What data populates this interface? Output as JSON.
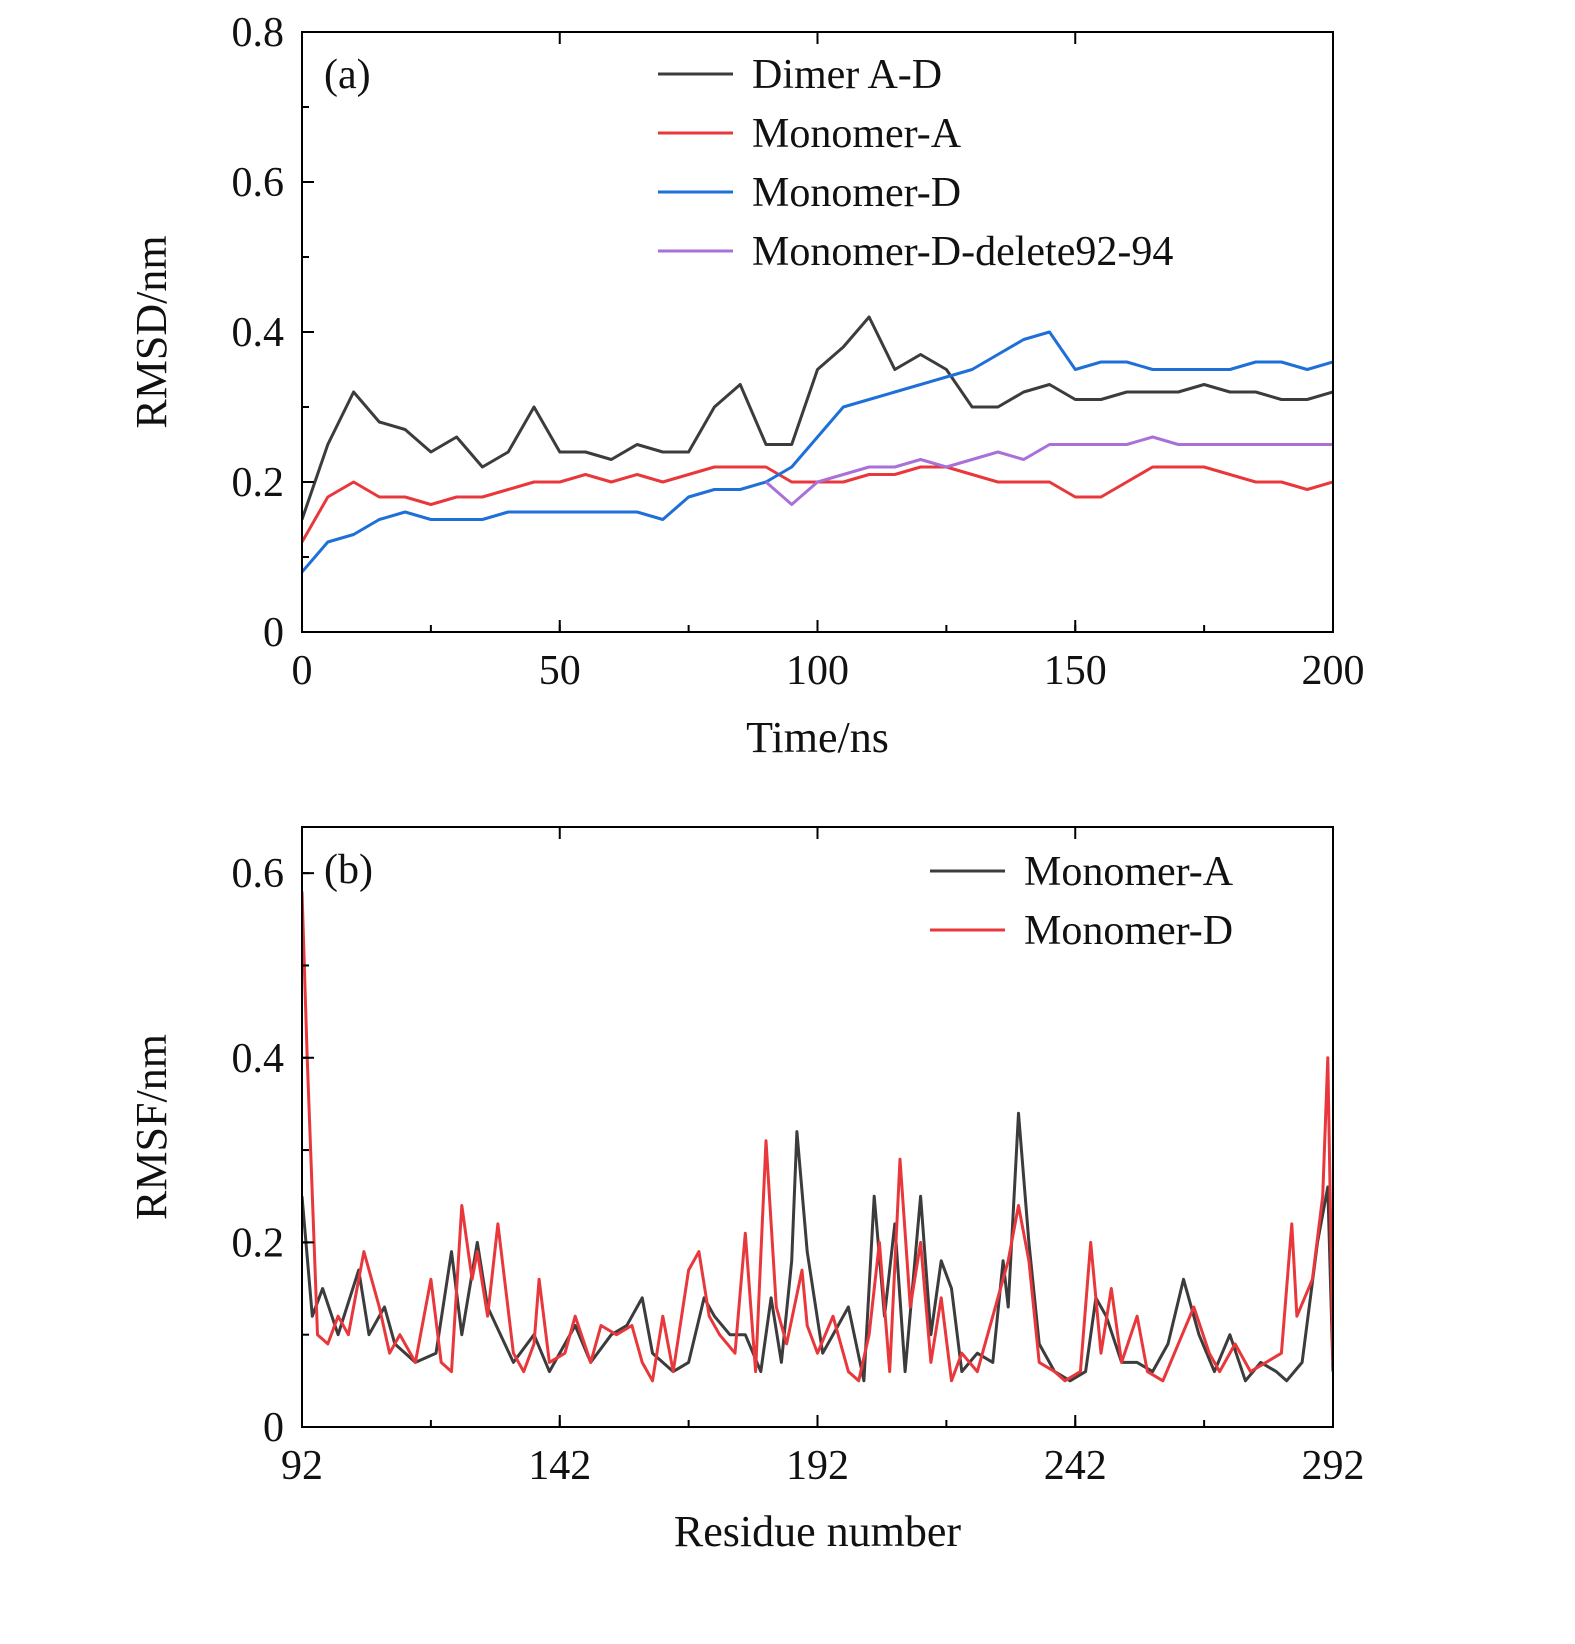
{
  "chart_data": [
    {
      "type": "line",
      "panel_label": "(a)",
      "xlabel": "Time/ns",
      "ylabel": "RMSD/nm",
      "xlim": [
        0,
        200
      ],
      "ylim": [
        0,
        0.8
      ],
      "xticks": [
        "0",
        "50",
        "100",
        "150",
        "200"
      ],
      "xtick_values": [
        0,
        50,
        100,
        150,
        200
      ],
      "xminor_step": 25,
      "yticks": [
        "0",
        "0.2",
        "0.4",
        "0.6",
        "0.8"
      ],
      "ytick_values": [
        0,
        0.2,
        0.4,
        0.6,
        0.8
      ],
      "yminor_step": 0.1,
      "legend_position": "top-right",
      "x": [
        0,
        5,
        10,
        15,
        20,
        25,
        30,
        35,
        40,
        45,
        50,
        55,
        60,
        65,
        70,
        75,
        80,
        85,
        90,
        95,
        100,
        105,
        110,
        115,
        120,
        125,
        130,
        135,
        140,
        145,
        150,
        155,
        160,
        165,
        170,
        175,
        180,
        185,
        190,
        195,
        200
      ],
      "series": [
        {
          "name": "Dimer A-D",
          "color": "#3c3c3c",
          "values": [
            0.15,
            0.25,
            0.32,
            0.28,
            0.27,
            0.24,
            0.26,
            0.22,
            0.24,
            0.3,
            0.24,
            0.24,
            0.23,
            0.25,
            0.24,
            0.24,
            0.3,
            0.33,
            0.25,
            0.25,
            0.35,
            0.38,
            0.42,
            0.35,
            0.37,
            0.35,
            0.3,
            0.3,
            0.32,
            0.33,
            0.31,
            0.31,
            0.32,
            0.32,
            0.32,
            0.33,
            0.32,
            0.32,
            0.31,
            0.31,
            0.32
          ]
        },
        {
          "name": "Monomer-A",
          "color": "#e8383b",
          "values": [
            0.12,
            0.18,
            0.2,
            0.18,
            0.18,
            0.17,
            0.18,
            0.18,
            0.19,
            0.2,
            0.2,
            0.21,
            0.2,
            0.21,
            0.2,
            0.21,
            0.22,
            0.22,
            0.22,
            0.2,
            0.2,
            0.2,
            0.21,
            0.21,
            0.22,
            0.22,
            0.21,
            0.2,
            0.2,
            0.2,
            0.18,
            0.18,
            0.2,
            0.22,
            0.22,
            0.22,
            0.21,
            0.2,
            0.2,
            0.19,
            0.2
          ]
        },
        {
          "name": "Monomer-D",
          "color": "#1f6fd8",
          "values": [
            0.08,
            0.12,
            0.13,
            0.15,
            0.16,
            0.15,
            0.15,
            0.15,
            0.16,
            0.16,
            0.16,
            0.16,
            0.16,
            0.16,
            0.15,
            0.18,
            0.19,
            0.19,
            0.2,
            0.22,
            0.26,
            0.3,
            0.31,
            0.32,
            0.33,
            0.34,
            0.35,
            0.37,
            0.39,
            0.4,
            0.35,
            0.36,
            0.36,
            0.35,
            0.35,
            0.35,
            0.35,
            0.36,
            0.36,
            0.35,
            0.36
          ]
        },
        {
          "name": "Monomer-D-delete92-94",
          "color": "#a970d8",
          "values": [
            null,
            null,
            null,
            null,
            null,
            null,
            null,
            null,
            null,
            null,
            null,
            null,
            null,
            null,
            null,
            null,
            null,
            null,
            0.2,
            0.17,
            0.2,
            0.21,
            0.22,
            0.22,
            0.23,
            0.22,
            0.23,
            0.24,
            0.23,
            0.25,
            0.25,
            0.25,
            0.25,
            0.26,
            0.25,
            0.25,
            0.25,
            0.25,
            0.25,
            0.25,
            0.25
          ]
        }
      ]
    },
    {
      "type": "line",
      "panel_label": "(b)",
      "xlabel": "Residue number",
      "ylabel": "RMSF/nm",
      "xlim": [
        92,
        292
      ],
      "ylim": [
        0,
        0.65
      ],
      "xticks": [
        "92",
        "142",
        "192",
        "242",
        "292"
      ],
      "xtick_values": [
        92,
        142,
        192,
        242,
        292
      ],
      "xminor_step": 25,
      "yticks": [
        "0",
        "0.2",
        "0.4",
        "0.6"
      ],
      "ytick_values": [
        0,
        0.2,
        0.4,
        0.6
      ],
      "yminor_step": 0.1,
      "legend_position": "top-right",
      "series": [
        {
          "name": "Monomer-A",
          "color": "#3c3c3c",
          "x": [
            92,
            94,
            96,
            99,
            103,
            105,
            108,
            110,
            114,
            118,
            121,
            123,
            126,
            128,
            133,
            137,
            140,
            145,
            148,
            152,
            155,
            158,
            160,
            164,
            167,
            170,
            172,
            175,
            178,
            181,
            183,
            185,
            187,
            188,
            190,
            193,
            195,
            198,
            201,
            203,
            205,
            207,
            209,
            212,
            214,
            216,
            218,
            220,
            223,
            226,
            228,
            229,
            231,
            233,
            235,
            238,
            241,
            244,
            246,
            248,
            251,
            254,
            257,
            260,
            263,
            266,
            269,
            272,
            275,
            278,
            281,
            283,
            286,
            289,
            291,
            292
          ],
          "values": [
            0.25,
            0.12,
            0.15,
            0.1,
            0.17,
            0.1,
            0.13,
            0.09,
            0.07,
            0.08,
            0.19,
            0.1,
            0.2,
            0.13,
            0.07,
            0.1,
            0.06,
            0.11,
            0.07,
            0.1,
            0.11,
            0.14,
            0.08,
            0.06,
            0.07,
            0.14,
            0.12,
            0.1,
            0.1,
            0.06,
            0.14,
            0.07,
            0.18,
            0.32,
            0.19,
            0.08,
            0.1,
            0.13,
            0.05,
            0.25,
            0.12,
            0.22,
            0.06,
            0.25,
            0.1,
            0.18,
            0.15,
            0.06,
            0.08,
            0.07,
            0.18,
            0.13,
            0.34,
            0.2,
            0.09,
            0.06,
            0.05,
            0.06,
            0.14,
            0.12,
            0.07,
            0.07,
            0.06,
            0.09,
            0.16,
            0.1,
            0.06,
            0.1,
            0.05,
            0.07,
            0.06,
            0.05,
            0.07,
            0.2,
            0.26,
            0.06
          ]
        },
        {
          "name": "Monomer-D",
          "color": "#e8383b",
          "x": [
            92,
            93,
            95,
            97,
            99,
            101,
            104,
            107,
            109,
            111,
            114,
            117,
            119,
            121,
            123,
            125,
            126,
            128,
            130,
            133,
            135,
            137,
            138,
            140,
            143,
            145,
            148,
            150,
            153,
            156,
            158,
            160,
            162,
            164,
            167,
            169,
            171,
            173,
            176,
            178,
            180,
            182,
            184,
            186,
            189,
            190,
            192,
            195,
            198,
            200,
            202,
            204,
            206,
            208,
            210,
            212,
            214,
            216,
            218,
            220,
            223,
            226,
            229,
            231,
            233,
            235,
            238,
            240,
            243,
            245,
            247,
            249,
            251,
            254,
            256,
            259,
            262,
            265,
            268,
            270,
            273,
            276,
            279,
            282,
            284,
            285,
            288,
            290,
            291,
            292
          ],
          "values": [
            0.58,
            0.4,
            0.1,
            0.09,
            0.12,
            0.1,
            0.19,
            0.13,
            0.08,
            0.1,
            0.07,
            0.16,
            0.07,
            0.06,
            0.24,
            0.16,
            0.19,
            0.12,
            0.22,
            0.08,
            0.06,
            0.09,
            0.16,
            0.07,
            0.08,
            0.12,
            0.07,
            0.11,
            0.1,
            0.11,
            0.07,
            0.05,
            0.12,
            0.06,
            0.17,
            0.19,
            0.12,
            0.1,
            0.08,
            0.21,
            0.06,
            0.31,
            0.13,
            0.09,
            0.17,
            0.11,
            0.08,
            0.12,
            0.06,
            0.05,
            0.1,
            0.2,
            0.06,
            0.29,
            0.13,
            0.2,
            0.07,
            0.14,
            0.05,
            0.08,
            0.06,
            0.12,
            0.18,
            0.24,
            0.18,
            0.07,
            0.06,
            0.05,
            0.06,
            0.2,
            0.08,
            0.15,
            0.07,
            0.12,
            0.06,
            0.05,
            0.09,
            0.13,
            0.08,
            0.06,
            0.09,
            0.06,
            0.07,
            0.08,
            0.22,
            0.12,
            0.16,
            0.25,
            0.4,
            0.07
          ]
        }
      ]
    }
  ]
}
